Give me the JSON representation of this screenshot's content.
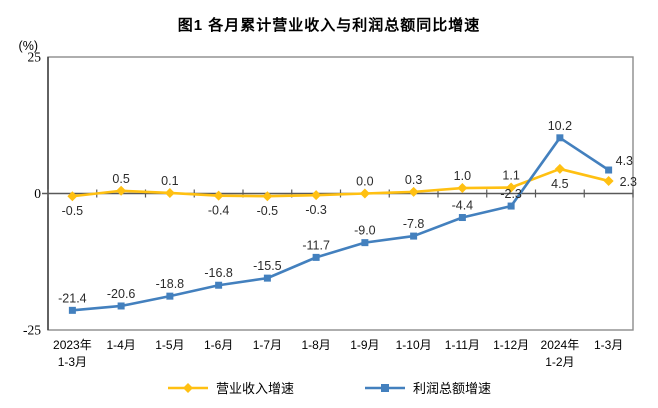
{
  "chart_data": {
    "type": "line",
    "title": "图1 各月累计营业收入与利润总额同比增速",
    "y_unit": "(%)",
    "ylim": [
      -25,
      25
    ],
    "y_ticks": [
      25,
      0,
      -25
    ],
    "grid": false,
    "legend_position": "bottom",
    "categories": [
      [
        "2023年",
        "1-3月"
      ],
      [
        "1-4月"
      ],
      [
        "1-5月"
      ],
      [
        "1-6月"
      ],
      [
        "1-7月"
      ],
      [
        "1-8月"
      ],
      [
        "1-9月"
      ],
      [
        "1-10月"
      ],
      [
        "1-11月"
      ],
      [
        "1-12月"
      ],
      [
        "2024年",
        "1-2月"
      ],
      [
        "1-3月"
      ]
    ],
    "series": [
      {
        "name": "营业收入增速",
        "color": "#FFC012",
        "marker": "diamond",
        "values": [
          -0.5,
          0.5,
          0.1,
          -0.4,
          -0.5,
          -0.3,
          0.0,
          0.3,
          1.0,
          1.1,
          4.5,
          2.3
        ],
        "label_pos": [
          "below",
          "above",
          "above",
          "below",
          "below",
          "below",
          "above",
          "above",
          "above",
          "above",
          "below",
          "right"
        ]
      },
      {
        "name": "利润总额增速",
        "color": "#4380BE",
        "marker": "square",
        "values": [
          -21.4,
          -20.6,
          -18.8,
          -16.8,
          -15.5,
          -11.7,
          -9.0,
          -7.8,
          -4.4,
          -2.3,
          10.2,
          4.3
        ],
        "label_pos": [
          "above",
          "above",
          "above",
          "above",
          "above",
          "above",
          "above",
          "above",
          "above",
          "above",
          "above",
          "above-right"
        ]
      }
    ]
  }
}
